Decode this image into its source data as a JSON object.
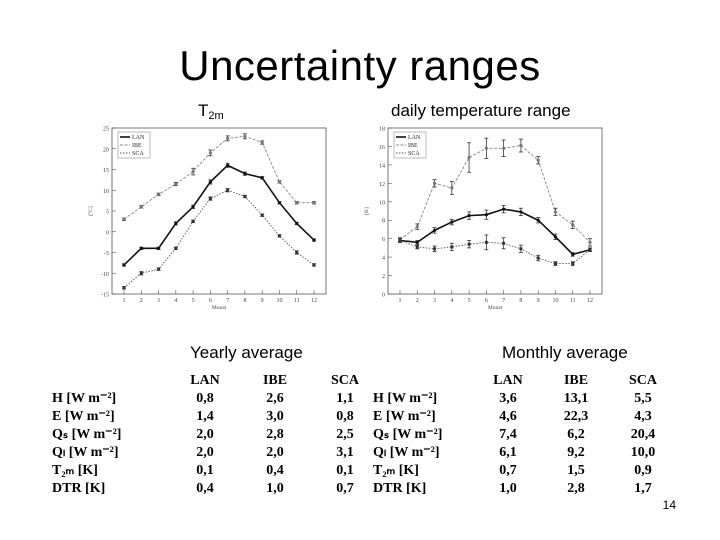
{
  "slide": {
    "title": "Uncertainty ranges",
    "page_number": "14"
  },
  "subtitles": {
    "t2m_base": "T",
    "t2m_sub": "2m",
    "dtr": "daily temperature range",
    "yearly": "Yearly average",
    "monthly": "Monthly average"
  },
  "tables": {
    "yearly": {
      "headers": [
        "LAN",
        "IBE",
        "SCA"
      ],
      "rows": [
        {
          "label": "H [W m⁻²]",
          "values": [
            "0,8",
            "2,6",
            "1,1"
          ]
        },
        {
          "label": "E [W m⁻²]",
          "values": [
            "1,4",
            "3,0",
            "0,8"
          ]
        },
        {
          "label": "Qₛ [W m⁻²]",
          "values": [
            "2,0",
            "2,8",
            "2,5"
          ]
        },
        {
          "label": "Qₗ [W m⁻²]",
          "values": [
            "2,0",
            "2,0",
            "3,1"
          ]
        },
        {
          "label": "T₂ₘ [K]",
          "values": [
            "0,1",
            "0,4",
            "0,1"
          ]
        },
        {
          "label": "DTR [K]",
          "values": [
            "0,4",
            "1,0",
            "0,7"
          ]
        }
      ]
    },
    "monthly": {
      "headers": [
        "LAN",
        "IBE",
        "SCA"
      ],
      "rows": [
        {
          "label": "H [W m⁻²]",
          "values": [
            "3,6",
            "13,1",
            "5,5"
          ]
        },
        {
          "label": "E [W m⁻²]",
          "values": [
            "4,6",
            "22,3",
            "4,3"
          ]
        },
        {
          "label": "Qₛ [W m⁻²]",
          "values": [
            "7,4",
            "6,2",
            "20,4"
          ]
        },
        {
          "label": "Qₗ [W m⁻²]",
          "values": [
            "6,1",
            "9,2",
            "10,0"
          ]
        },
        {
          "label": "T₂ₘ [K]",
          "values": [
            "0,7",
            "1,5",
            "0,9"
          ]
        },
        {
          "label": "DTR [K]",
          "values": [
            "1,0",
            "2,8",
            "1,7"
          ]
        }
      ]
    }
  },
  "chart_data": [
    {
      "type": "line",
      "title": "T2m",
      "xlabel": "Monat",
      "ylabel": "[°C]",
      "ylim": [
        -15,
        25
      ],
      "yticks": [
        -15,
        -10,
        -5,
        0,
        5,
        10,
        15,
        20,
        25
      ],
      "x": [
        1,
        2,
        3,
        4,
        5,
        6,
        7,
        8,
        9,
        10,
        11,
        12
      ],
      "legend": [
        "LAN",
        "IBE",
        "SCA"
      ],
      "series": [
        {
          "name": "LAN",
          "values": [
            -8,
            -4,
            -4,
            2,
            6,
            12,
            16,
            14,
            13,
            7,
            2,
            -2
          ],
          "errors": [
            0.3,
            0.3,
            0.3,
            0.4,
            0.4,
            0.5,
            0.5,
            0.4,
            0.3,
            0.3,
            0.3,
            0.3
          ]
        },
        {
          "name": "IBE",
          "values": [
            3,
            6,
            9,
            11.5,
            14.5,
            19,
            22.5,
            23,
            21.5,
            12,
            7,
            7
          ],
          "errors": [
            0.3,
            0.3,
            0.3,
            0.4,
            0.8,
            0.7,
            0.6,
            0.6,
            0.4,
            0.3,
            0.3,
            0.3
          ]
        },
        {
          "name": "SCA",
          "values": [
            -13.5,
            -10,
            -9,
            -4,
            2.5,
            8,
            10,
            8.5,
            4,
            -1,
            -5,
            -8
          ],
          "errors": [
            0.3,
            0.4,
            0.3,
            0.3,
            0.3,
            0.4,
            0.4,
            0.3,
            0.3,
            0.3,
            0.4,
            0.3
          ]
        }
      ]
    },
    {
      "type": "line",
      "title": "daily temperature range",
      "xlabel": "Monat",
      "ylabel": "[K]",
      "ylim": [
        0,
        18
      ],
      "yticks": [
        0,
        2,
        4,
        6,
        8,
        10,
        12,
        14,
        16,
        18
      ],
      "x": [
        1,
        2,
        3,
        4,
        5,
        6,
        7,
        8,
        9,
        10,
        11,
        12
      ],
      "legend": [
        "LAN",
        "IBE",
        "SCA"
      ],
      "series": [
        {
          "name": "LAN",
          "values": [
            5.8,
            5.6,
            6.9,
            7.8,
            8.5,
            8.6,
            9.2,
            8.9,
            8.0,
            6.2,
            4.3,
            4.8
          ],
          "errors": [
            0.2,
            0.2,
            0.3,
            0.3,
            0.4,
            0.5,
            0.4,
            0.4,
            0.3,
            0.3,
            0.2,
            0.2
          ]
        },
        {
          "name": "IBE",
          "values": [
            5.9,
            7.3,
            12.0,
            11.5,
            14.8,
            15.8,
            15.8,
            16.1,
            14.5,
            8.9,
            7.5,
            5.6
          ],
          "errors": [
            0.2,
            0.3,
            0.4,
            0.7,
            1.6,
            1.1,
            0.9,
            0.7,
            0.4,
            0.4,
            0.4,
            0.4
          ]
        },
        {
          "name": "SCA",
          "values": [
            5.8,
            5.1,
            4.9,
            5.1,
            5.4,
            5.6,
            5.5,
            4.9,
            3.9,
            3.3,
            3.3,
            4.8
          ],
          "errors": [
            0.2,
            0.2,
            0.3,
            0.4,
            0.4,
            0.8,
            0.6,
            0.4,
            0.3,
            0.2,
            0.2,
            0.2
          ]
        }
      ]
    }
  ]
}
